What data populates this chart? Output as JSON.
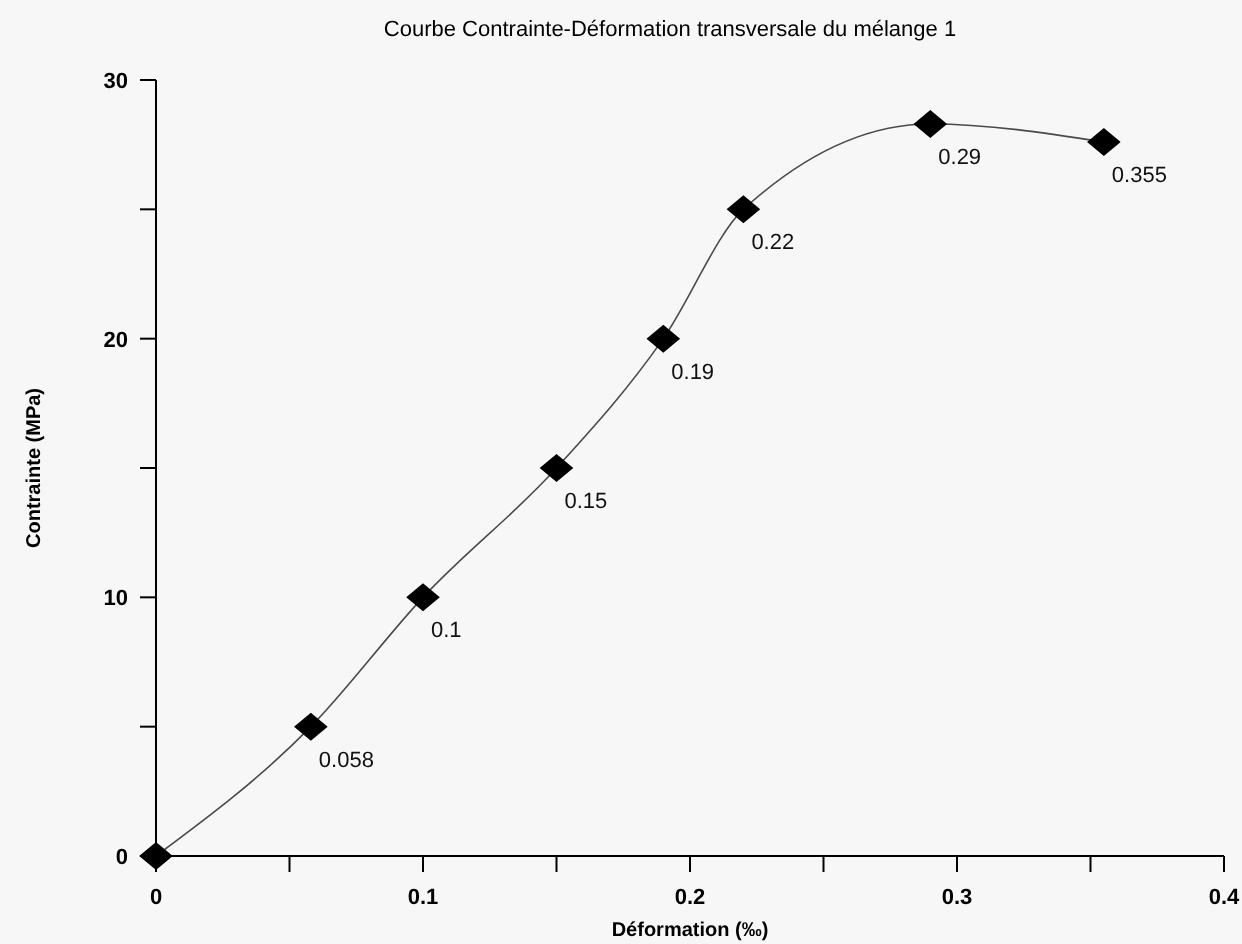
{
  "chart_data": {
    "type": "line",
    "title": "Courbe Contrainte-Déformation transversale du mélange 1",
    "xlabel": "Déformation (‰)",
    "ylabel": "Contrainte (MPa)",
    "x": [
      0,
      0.058,
      0.1,
      0.15,
      0.19,
      0.22,
      0.29,
      0.355
    ],
    "series": [
      {
        "color": "#000000",
        "values": [
          0,
          5,
          10,
          15,
          20,
          25,
          28.3,
          27.6
        ]
      }
    ],
    "annotations": [
      {
        "text": "0.058",
        "x": 0.058,
        "y": 5
      },
      {
        "text": "0.1",
        "x": 0.1,
        "y": 10
      },
      {
        "text": "0.15",
        "x": 0.15,
        "y": 15
      },
      {
        "text": "0.19",
        "x": 0.19,
        "y": 20
      },
      {
        "text": "0.22",
        "x": 0.22,
        "y": 25
      },
      {
        "text": "0.29",
        "x": 0.29,
        "y": 28.3
      },
      {
        "text": "0.355",
        "x": 0.355,
        "y": 27.6
      }
    ],
    "xlim": [
      0,
      0.4
    ],
    "ylim": [
      0,
      30
    ],
    "xticks": [
      0,
      {
        "value": 0.05,
        "label": null
      },
      0.1,
      {
        "value": 0.15,
        "label": null
      },
      0.2,
      {
        "value": 0.25,
        "label": null
      },
      0.3,
      {
        "value": 0.35,
        "label": null
      },
      0.4
    ],
    "yticks": [
      0,
      {
        "value": 5,
        "label": null
      },
      10,
      {
        "value": 15,
        "label": null
      },
      20,
      {
        "value": 25,
        "label": null
      },
      30
    ],
    "marker": "diamond",
    "line_style": "solid",
    "grid": false
  }
}
